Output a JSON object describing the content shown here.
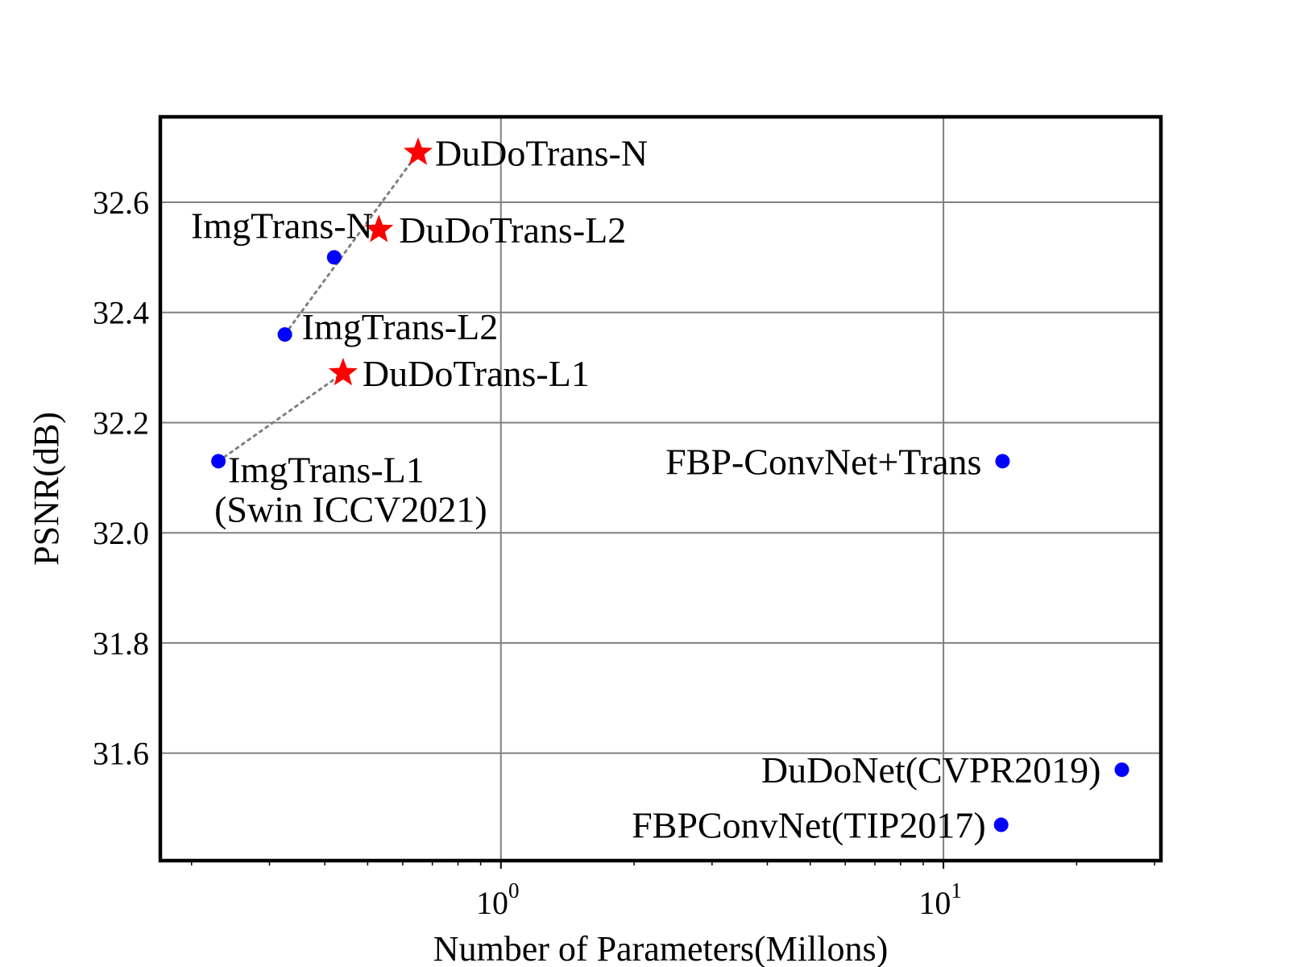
{
  "chart_data": {
    "type": "scatter",
    "xlabel": "Number of Parameters(Millons)",
    "ylabel": "PSNR(dB)",
    "xscale": "log",
    "xlim": [
      0.17,
      31
    ],
    "ylim": [
      31.405,
      32.755
    ],
    "grid": true,
    "x_ticks": [
      {
        "base": "10",
        "exp": "0",
        "value": 1
      },
      {
        "base": "10",
        "exp": "1",
        "value": 10
      }
    ],
    "y_ticks": [
      "31.6",
      "31.8",
      "32.0",
      "32.2",
      "32.4",
      "32.6"
    ],
    "colors": {
      "imgtrans": "#0000ff",
      "dudotrans": "#ff0000",
      "trend": "#808080"
    },
    "points": [
      {
        "name": "ImgTrans-N",
        "x": 0.42,
        "y": 32.5,
        "marker": "circle",
        "color": "#0000ff"
      },
      {
        "name": "ImgTrans-L2",
        "x": 0.325,
        "y": 32.36,
        "marker": "circle",
        "color": "#0000ff"
      },
      {
        "name": "ImgTrans-L1",
        "name2": "(Swin ICCV2021)",
        "x": 0.23,
        "y": 32.13,
        "marker": "circle",
        "color": "#0000ff"
      },
      {
        "name": "DuDoTrans-N",
        "x": 0.65,
        "y": 32.69,
        "marker": "star",
        "color": "#ff0000"
      },
      {
        "name": "DuDoTrans-L2",
        "x": 0.53,
        "y": 32.55,
        "marker": "star",
        "color": "#ff0000"
      },
      {
        "name": "DuDoTrans-L1",
        "x": 0.44,
        "y": 32.29,
        "marker": "star",
        "color": "#ff0000"
      },
      {
        "name": "FBP-ConvNet+Trans",
        "x": 13.6,
        "y": 32.13,
        "marker": "circle",
        "color": "#0000ff"
      },
      {
        "name": "DuDoNet(CVPR2019)",
        "x": 25.3,
        "y": 31.57,
        "marker": "circle",
        "color": "#0000ff"
      },
      {
        "name": "FBPConvNet(TIP2017)",
        "x": 13.5,
        "y": 31.47,
        "marker": "circle",
        "color": "#0000ff"
      }
    ],
    "trend_lines": [
      {
        "from": "ImgTrans-L2",
        "to": "DuDoTrans-N"
      },
      {
        "from": "ImgTrans-L1",
        "to": "DuDoTrans-L1"
      }
    ]
  }
}
